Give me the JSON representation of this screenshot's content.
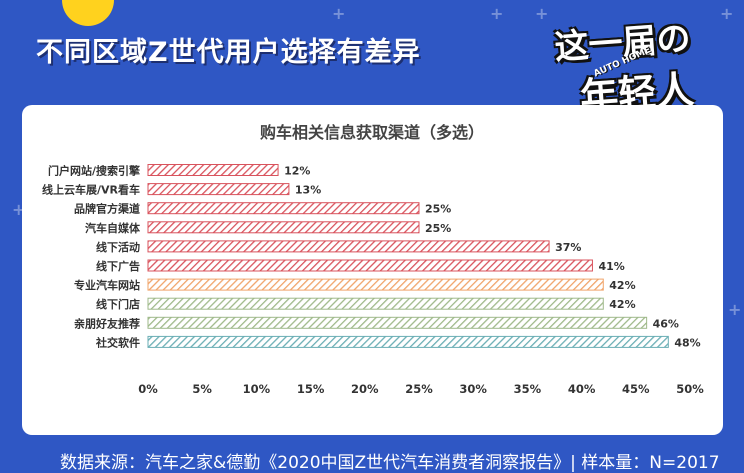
{
  "header": {
    "headline": "不同区域Z世代用户选择有差异",
    "badge_line1": "这一届の",
    "badge_line2": "年轻人",
    "badge_mark": "AUTO HOME"
  },
  "footer": {
    "source": "数据来源：汽车之家&德勤《2020中国Z世代汽车消费者洞察报告》| 样本量：N=2017"
  },
  "colors": {
    "background": "#2f57c4",
    "accent_yellow": "#ffd21e",
    "bar_red": "#d9535d",
    "bar_orange": "#f0a46a",
    "bar_green": "#9fb98a",
    "bar_teal": "#6aaeb4"
  },
  "chart_data": {
    "type": "bar",
    "orientation": "horizontal",
    "title": "购车相关信息获取渠道（多选）",
    "categories": [
      "门户网站/搜索引擎",
      "线上云车展/VR看车",
      "品牌官方渠道",
      "汽车自媒体",
      "线下活动",
      "线下广告",
      "专业汽车网站",
      "线下门店",
      "亲朋好友推荐",
      "社交软件"
    ],
    "values": [
      12,
      13,
      25,
      25,
      37,
      41,
      42,
      42,
      46,
      48
    ],
    "value_labels": [
      "12%",
      "13%",
      "25%",
      "25%",
      "37%",
      "41%",
      "42%",
      "42%",
      "46%",
      "48%"
    ],
    "bar_colors": [
      "#d9535d",
      "#d9535d",
      "#d9535d",
      "#d9535d",
      "#d9535d",
      "#d9535d",
      "#f0a46a",
      "#9fb98a",
      "#9fb98a",
      "#6aaeb4"
    ],
    "xlim": [
      0,
      50
    ],
    "xticks": [
      "0%",
      "5%",
      "10%",
      "15%",
      "20%",
      "25%",
      "30%",
      "35%",
      "40%",
      "45%",
      "50%"
    ],
    "pattern": "diagonal-hatch",
    "grid": false,
    "legend": false
  }
}
